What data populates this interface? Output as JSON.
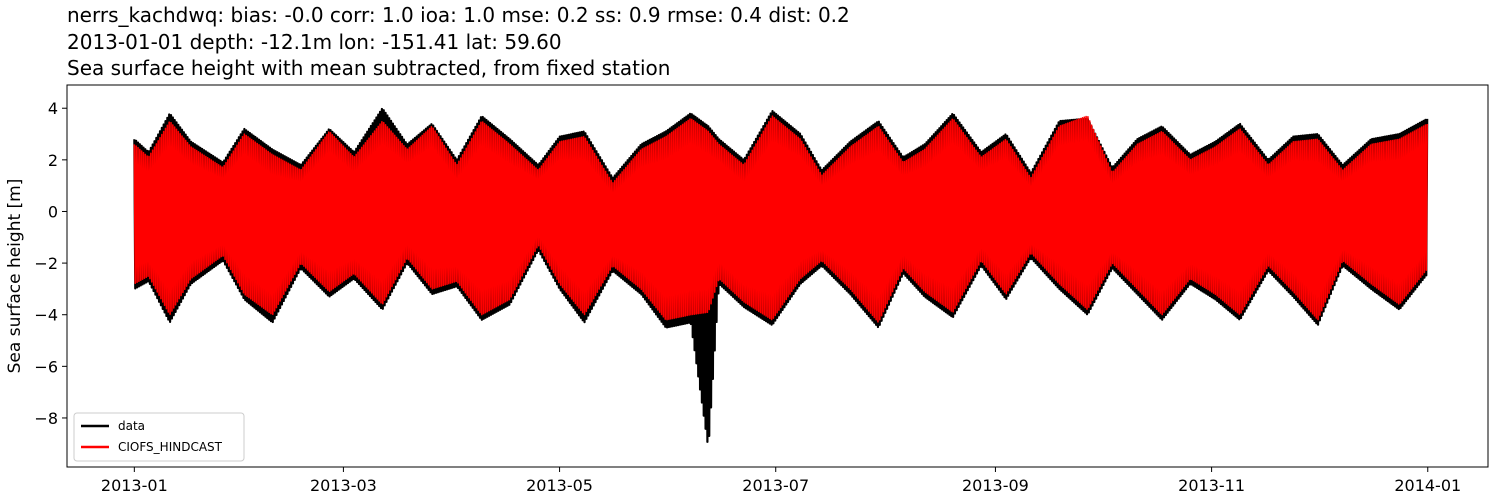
{
  "chart_data": {
    "type": "line",
    "title_lines": [
      "nerrs_kachdwq: bias: -0.0  corr: 1.0  ioa: 1.0  mse: 0.2  ss: 0.9  rmse: 0.4  dist: 0.2",
      "2013-01-01 depth: -12.1m lon: -151.41 lat: 59.60",
      "Sea surface height with mean subtracted, from fixed station"
    ],
    "ylabel": "Sea surface height [m]",
    "xlabel": "",
    "xlim": [
      "2012-12-13",
      "2014-01-18"
    ],
    "ylim": [
      -9.9,
      4.9
    ],
    "x_ticks": [
      "2013-01",
      "2013-03",
      "2013-05",
      "2013-07",
      "2013-09",
      "2013-11",
      "2014-01"
    ],
    "x_tick_dates": [
      "2013-01-01",
      "2013-03-01",
      "2013-05-01",
      "2013-07-01",
      "2013-09-01",
      "2013-11-01",
      "2014-01-01"
    ],
    "y_ticks": [
      "4",
      "2",
      "0",
      "−2",
      "−4",
      "−6",
      "−8"
    ],
    "y_tick_values": [
      4,
      2,
      0,
      -2,
      -4,
      -6,
      -8
    ],
    "grid": false,
    "legend_position": "lower-left",
    "series": [
      {
        "name": "data",
        "color": "#000000",
        "x_start": "2013-01-01",
        "x_end": "2014-01-01",
        "envelope_dates": [
          "2013-01-01",
          "2013-01-05",
          "2013-01-11",
          "2013-01-17",
          "2013-01-26",
          "2013-02-01",
          "2013-02-09",
          "2013-02-17",
          "2013-02-25",
          "2013-03-04",
          "2013-03-12",
          "2013-03-19",
          "2013-03-26",
          "2013-04-02",
          "2013-04-09",
          "2013-04-17",
          "2013-04-25",
          "2013-05-01",
          "2013-05-08",
          "2013-05-16",
          "2013-05-24",
          "2013-05-31",
          "2013-06-07",
          "2013-06-12",
          "2013-06-15",
          "2013-06-22",
          "2013-06-30",
          "2013-07-08",
          "2013-07-14",
          "2013-07-22",
          "2013-07-30",
          "2013-08-06",
          "2013-08-12",
          "2013-08-20",
          "2013-08-28",
          "2013-09-04",
          "2013-09-11",
          "2013-09-19",
          "2013-09-27",
          "2013-10-04",
          "2013-10-11",
          "2013-10-18",
          "2013-10-26",
          "2013-11-02",
          "2013-11-09",
          "2013-11-17",
          "2013-11-24",
          "2013-12-01",
          "2013-12-08",
          "2013-12-16",
          "2013-12-24",
          "2014-01-01"
        ],
        "envelope_upper": [
          2.8,
          2.3,
          3.8,
          2.7,
          1.9,
          3.2,
          2.4,
          1.8,
          3.2,
          2.3,
          4.0,
          2.6,
          3.4,
          2.0,
          3.7,
          2.8,
          1.8,
          2.9,
          3.1,
          1.3,
          2.6,
          3.1,
          3.8,
          3.3,
          2.8,
          2.0,
          3.9,
          3.0,
          1.6,
          2.7,
          3.5,
          2.1,
          2.6,
          3.8,
          2.3,
          3.0,
          1.5,
          3.5,
          3.6,
          1.7,
          2.8,
          3.3,
          2.2,
          2.7,
          3.4,
          2.0,
          2.9,
          3.0,
          1.8,
          2.8,
          3.0,
          3.6
        ],
        "envelope_lower": [
          -3.0,
          -2.7,
          -4.3,
          -2.8,
          -1.9,
          -3.4,
          -4.3,
          -2.2,
          -3.3,
          -2.6,
          -3.8,
          -2.0,
          -3.2,
          -2.9,
          -4.2,
          -3.6,
          -1.5,
          -3.0,
          -4.3,
          -2.3,
          -3.2,
          -4.5,
          -4.3,
          -9.2,
          -2.8,
          -3.7,
          -4.4,
          -2.8,
          -2.1,
          -3.2,
          -4.5,
          -2.4,
          -3.3,
          -4.1,
          -2.1,
          -3.4,
          -1.8,
          -3.0,
          -4.0,
          -2.2,
          -3.2,
          -4.2,
          -2.8,
          -3.4,
          -4.2,
          -2.3,
          -3.3,
          -4.4,
          -2.1,
          -3.0,
          -3.8,
          -2.4
        ]
      },
      {
        "name": "CIOFS_HINDCAST",
        "color": "#ff0000",
        "x_start": "2013-01-01",
        "x_end": "2014-01-01",
        "envelope_dates": [
          "2013-01-01",
          "2013-01-05",
          "2013-01-11",
          "2013-01-17",
          "2013-01-26",
          "2013-02-01",
          "2013-02-09",
          "2013-02-17",
          "2013-02-25",
          "2013-03-04",
          "2013-03-12",
          "2013-03-19",
          "2013-03-26",
          "2013-04-02",
          "2013-04-09",
          "2013-04-17",
          "2013-04-25",
          "2013-05-01",
          "2013-05-08",
          "2013-05-16",
          "2013-05-24",
          "2013-05-31",
          "2013-06-07",
          "2013-06-12",
          "2013-06-15",
          "2013-06-22",
          "2013-06-30",
          "2013-07-08",
          "2013-07-14",
          "2013-07-22",
          "2013-07-30",
          "2013-08-06",
          "2013-08-12",
          "2013-08-20",
          "2013-08-28",
          "2013-09-04",
          "2013-09-11",
          "2013-09-19",
          "2013-09-27",
          "2013-10-04",
          "2013-10-11",
          "2013-10-18",
          "2013-10-26",
          "2013-11-02",
          "2013-11-09",
          "2013-11-17",
          "2013-11-24",
          "2013-12-01",
          "2013-12-08",
          "2013-12-16",
          "2013-12-24",
          "2014-01-01"
        ],
        "envelope_upper": [
          2.6,
          2.1,
          3.5,
          2.5,
          1.7,
          3.0,
          2.2,
          1.6,
          3.1,
          2.1,
          3.5,
          2.4,
          3.3,
          1.8,
          3.5,
          2.6,
          1.6,
          2.7,
          2.9,
          1.1,
          2.4,
          2.9,
          3.6,
          3.1,
          2.6,
          1.8,
          3.7,
          2.8,
          1.4,
          2.5,
          3.3,
          1.9,
          2.4,
          3.6,
          2.1,
          2.8,
          1.3,
          3.3,
          3.7,
          1.5,
          2.6,
          3.1,
          2.0,
          2.5,
          3.2,
          1.8,
          2.7,
          2.8,
          1.6,
          2.6,
          2.8,
          3.4
        ],
        "envelope_lower": [
          -2.8,
          -2.5,
          -4.0,
          -2.6,
          -1.7,
          -3.2,
          -4.0,
          -2.0,
          -3.1,
          -2.4,
          -3.6,
          -1.8,
          -3.0,
          -2.7,
          -4.0,
          -3.4,
          -1.3,
          -2.8,
          -4.0,
          -2.1,
          -3.0,
          -4.2,
          -4.0,
          -3.9,
          -2.6,
          -3.5,
          -4.2,
          -2.6,
          -1.9,
          -3.0,
          -4.3,
          -2.2,
          -3.1,
          -3.9,
          -1.9,
          -3.2,
          -1.6,
          -2.8,
          -3.8,
          -2.0,
          -3.0,
          -4.0,
          -2.6,
          -3.2,
          -4.0,
          -2.1,
          -3.1,
          -4.2,
          -1.9,
          -2.8,
          -3.6,
          -2.2
        ]
      }
    ]
  }
}
